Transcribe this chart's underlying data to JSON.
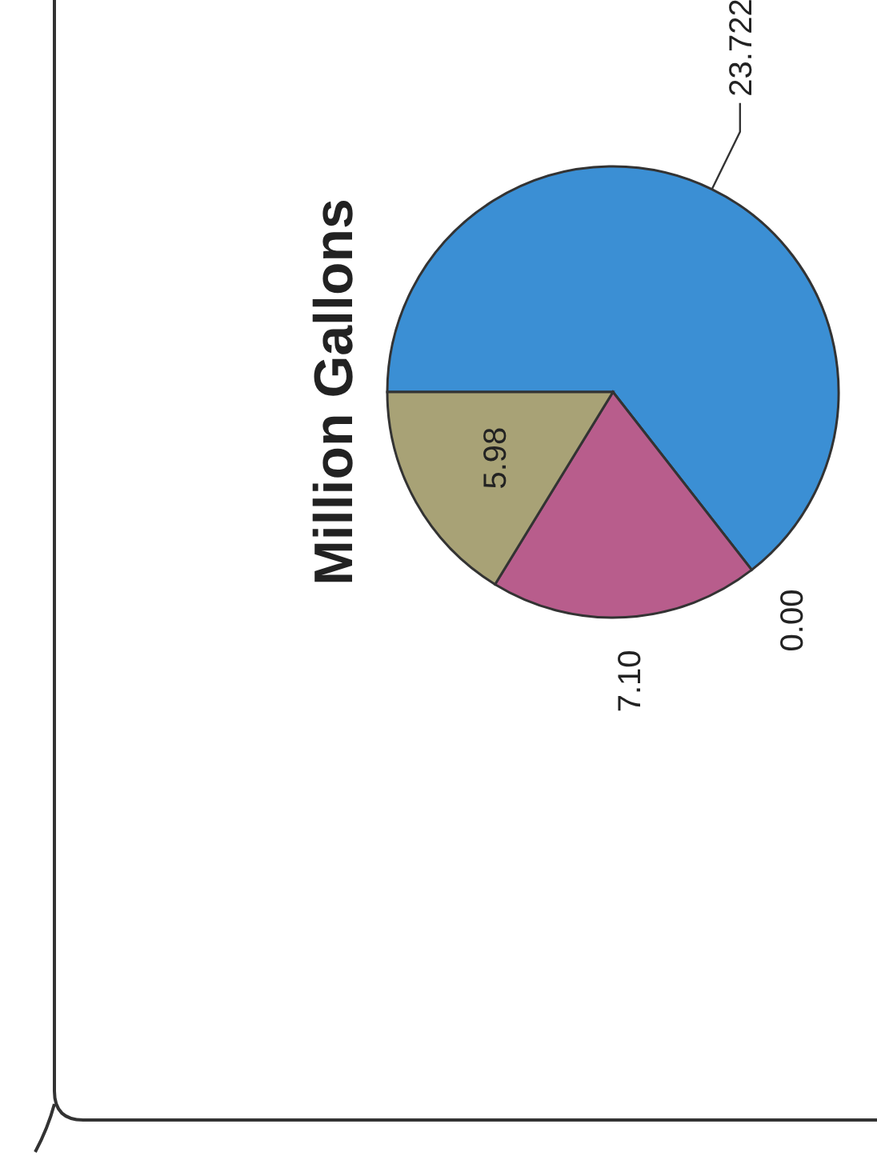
{
  "chart_data": {
    "type": "pie",
    "title": "Million Gallons",
    "categories": [
      null,
      null,
      null,
      null
    ],
    "values": [
      23.722,
      0.0,
      7.1,
      5.98
    ],
    "value_labels": [
      "23.722",
      "0.00",
      "7.10",
      "5.98"
    ],
    "colors": [
      "#3b8fd4",
      "#8a8a8a",
      "#b85d8c",
      "#a8a276"
    ]
  }
}
